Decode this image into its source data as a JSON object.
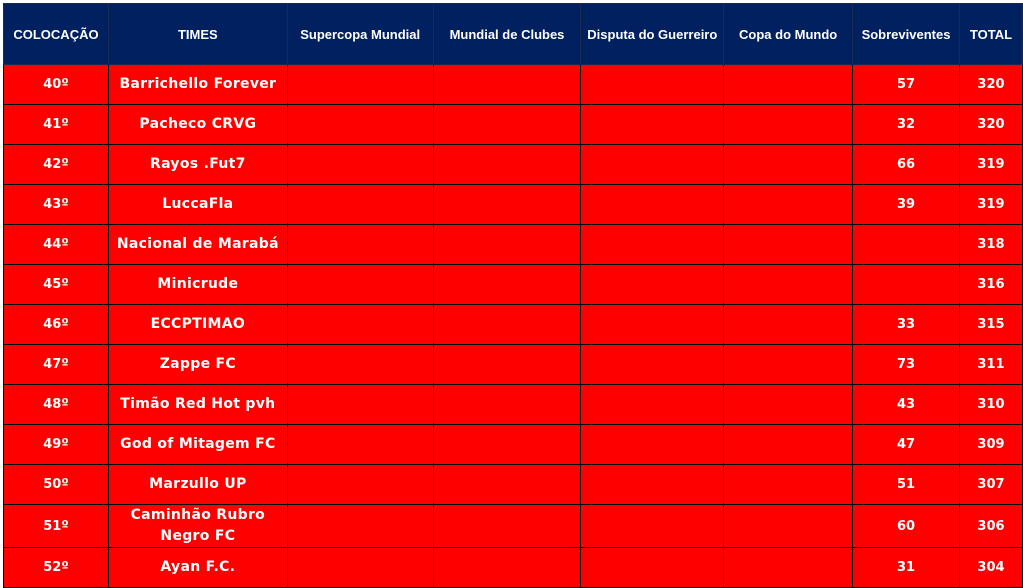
{
  "colors": {
    "header_bg": "#002060",
    "row_bg": "#FF0000",
    "text": "#FFFFFF"
  },
  "headers": [
    "COLOCAÇÃO",
    "TIMES",
    "Supercopa Mundial",
    "Mundial de Clubes",
    "Disputa do Guerreiro",
    "Copa do Mundo",
    "Sobreviventes",
    "TOTAL"
  ],
  "rows": [
    {
      "pos": "40º",
      "team": "Barrichello Forever",
      "sobreviventes": "57",
      "total": "320"
    },
    {
      "pos": "41º",
      "team": "Pacheco CRVG",
      "sobreviventes": "32",
      "total": "320"
    },
    {
      "pos": "42º",
      "team": "Rayos .Fut7",
      "sobreviventes": "66",
      "total": "319"
    },
    {
      "pos": "43º",
      "team": "LuccaFla",
      "sobreviventes": "39",
      "total": "319"
    },
    {
      "pos": "44º",
      "team": "Nacional de Marabá",
      "sobreviventes": "",
      "total": "318"
    },
    {
      "pos": "45º",
      "team": "Minicrude",
      "sobreviventes": "",
      "total": "316"
    },
    {
      "pos": "46º",
      "team": "ECCPTIMAO",
      "sobreviventes": "33",
      "total": "315"
    },
    {
      "pos": "47º",
      "team": "Zappe FC",
      "sobreviventes": "73",
      "total": "311"
    },
    {
      "pos": "48º",
      "team": "Timão Red Hot pvh",
      "sobreviventes": "43",
      "total": "310"
    },
    {
      "pos": "49º",
      "team": "God of Mitagem FC",
      "sobreviventes": "47",
      "total": "309"
    },
    {
      "pos": "50º",
      "team": "Marzullo UP",
      "sobreviventes": "51",
      "total": "307"
    },
    {
      "pos": "51º",
      "team": "Caminhão Rubro Negro FC",
      "sobreviventes": "60",
      "total": "306"
    },
    {
      "pos": "52º",
      "team": "Ayan F.C.",
      "sobreviventes": "31",
      "total": "304"
    }
  ]
}
